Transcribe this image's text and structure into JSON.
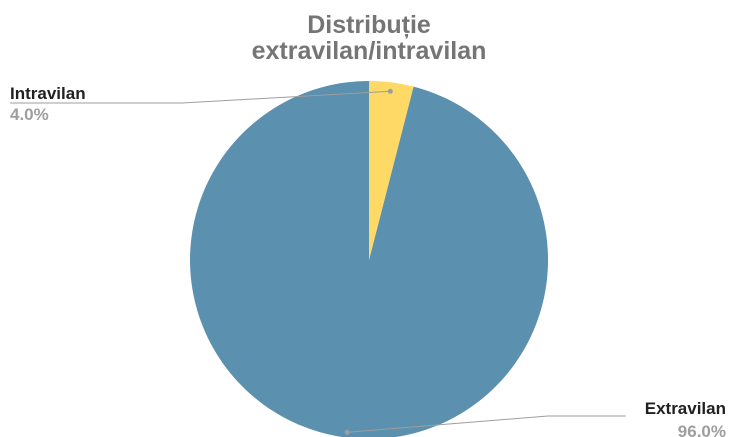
{
  "chart_data": {
    "type": "pie",
    "title_lines": [
      "Distribuție",
      "extravilan/intravilan"
    ],
    "slices": [
      {
        "name": "Extravilan",
        "value": 96.0,
        "label": "96.0%",
        "color": "#5b90ae"
      },
      {
        "name": "Intravilan",
        "value": 4.0,
        "label": "4.0%",
        "color": "#ffd966"
      }
    ],
    "start_angle_deg": 0,
    "direction": "counterclockwise",
    "legend": "none",
    "leader_line_color": "#9e9e9e"
  }
}
